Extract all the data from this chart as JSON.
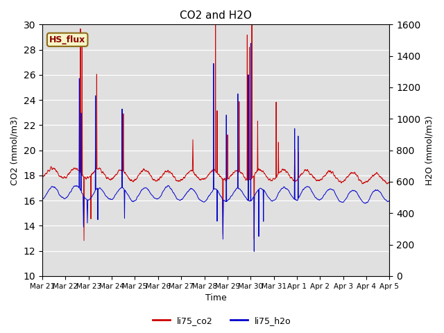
{
  "title": "CO2 and H2O",
  "xlabel": "Time",
  "ylabel_left": "CO2 (mmol/m3)",
  "ylabel_right": "H2O (mmol/m3)",
  "legend_label_co2": "li75_co2",
  "legend_label_h2o": "li75_h2o",
  "annotation": "HS_flux",
  "color_co2": "#cc0000",
  "color_h2o": "#0000cc",
  "ylim_left": [
    10,
    30
  ],
  "ylim_right": [
    0,
    1600
  ],
  "bg_color": "#e0e0e0",
  "fig_bg_color": "#ffffff",
  "annotation_bg": "#f5f5c8",
  "annotation_border": "#8b6914",
  "annotation_text_color": "#8b0000",
  "xtick_labels": [
    "Mar 21",
    "Mar 22",
    "Mar 23",
    "Mar 24",
    "Mar 25",
    "Mar 26",
    "Mar 27",
    "Mar 28",
    "Mar 29",
    "Mar 30",
    "Mar 31",
    "Apr 1",
    "Apr 2",
    "Apr 3",
    "Apr 4",
    "Apr 5"
  ],
  "yticks_left": [
    10,
    12,
    14,
    16,
    18,
    20,
    22,
    24,
    26,
    28,
    30
  ],
  "yticks_right": [
    0,
    200,
    400,
    600,
    800,
    1000,
    1200,
    1400,
    1600
  ],
  "n_days": 15,
  "pts_per_day": 144,
  "co2_base": 18.0,
  "h2o_base": 520.0,
  "h2o_scale": 40.0
}
